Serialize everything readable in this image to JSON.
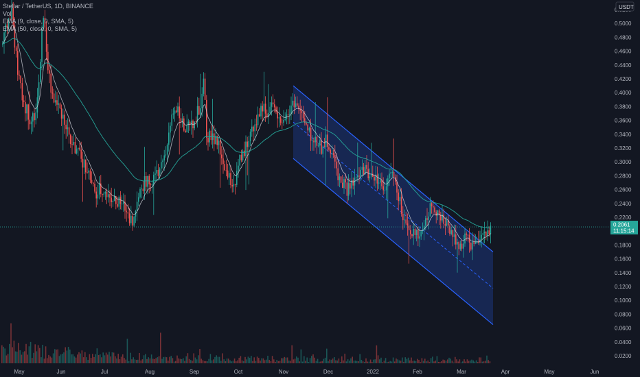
{
  "header": {
    "symbol_line": "Stellar / TetherUS, 1D, BINANCE",
    "indicators": [
      "Vol",
      "EMA (9, close, 0, SMA, 5)",
      "EMA (50, close, 0, SMA, 5)"
    ]
  },
  "price_axis": {
    "currency": "USDT",
    "ticks": [
      "0.5200",
      "0.5000",
      "0.4800",
      "0.4600",
      "0.4400",
      "0.4200",
      "0.4000",
      "0.3800",
      "0.3600",
      "0.3400",
      "0.3200",
      "0.3000",
      "0.2800",
      "0.2600",
      "0.2400",
      "0.2200",
      "0.1800",
      "0.1600",
      "0.1400",
      "0.1200",
      "0.1000",
      "0.0800",
      "0.0600",
      "0.0400",
      "0.0200"
    ],
    "last_price": "0.2061",
    "countdown": "11:15:14"
  },
  "time_axis": {
    "ticks": [
      "May",
      "Jun",
      "Jul",
      "Aug",
      "Sep",
      "Oct",
      "Nov",
      "Dec",
      "2022",
      "Feb",
      "Mar",
      "Apr",
      "May",
      "Jun"
    ]
  },
  "colors": {
    "background": "#131722",
    "up": "#26a69a",
    "down": "#ef5350",
    "ema_fast": "#d1d4dc",
    "ema_slow": "#26a69a",
    "channel": "#2962ff",
    "price_line": "#26a69a"
  },
  "chart_data": {
    "type": "candlestick",
    "x": [
      "2021-05",
      "2021-06",
      "2021-07",
      "2021-08",
      "2021-09",
      "2021-10",
      "2021-11",
      "2021-12",
      "2022-01",
      "2022-02",
      "2022-03"
    ],
    "series": [
      {
        "values": [
          0.5,
          0.39,
          0.22,
          0.3,
          0.36,
          0.37,
          0.38,
          0.28,
          0.27,
          0.21,
          0.2061
        ]
      }
    ],
    "ylim": [
      0.0,
      0.53
    ],
    "channel": {
      "start": "2021-11-10",
      "end": "2022-03-25",
      "upper_start": 0.41,
      "upper_end": 0.17,
      "lower_start": 0.305,
      "lower_end": 0.065,
      "mid_start": 0.3575,
      "mid_end": 0.1175
    }
  }
}
